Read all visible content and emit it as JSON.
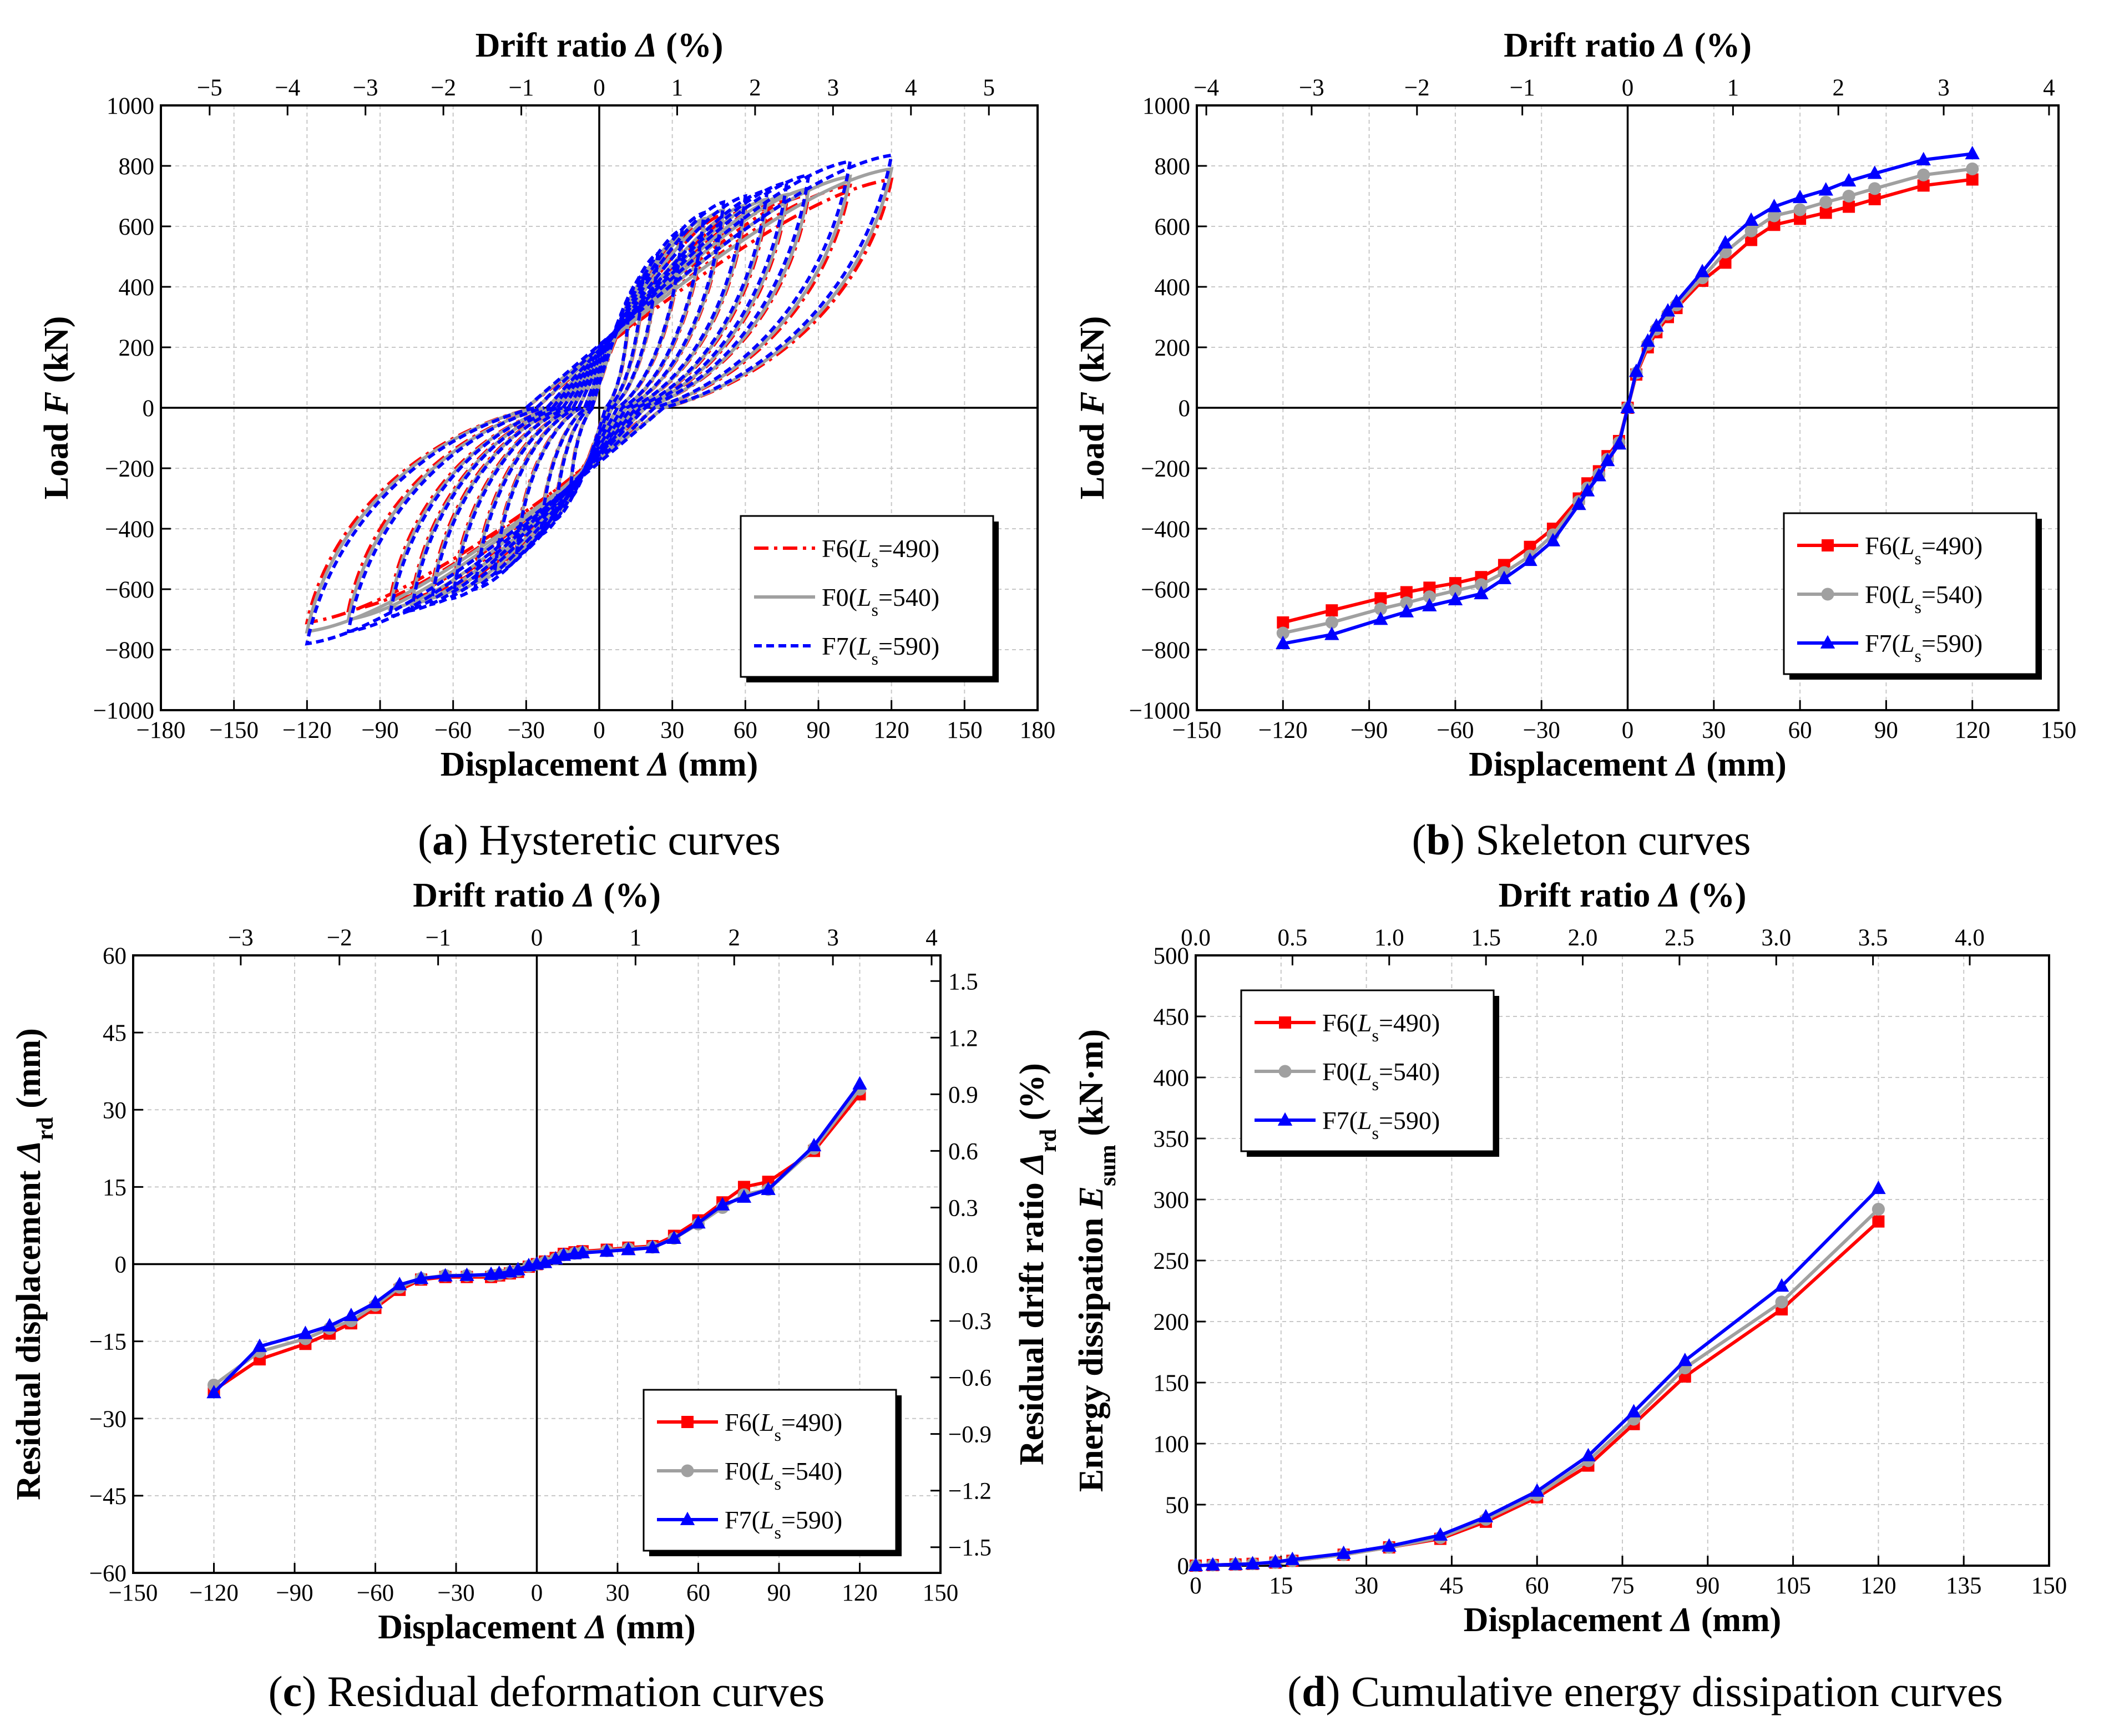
{
  "figure": {
    "captions": [
      {
        "letter": "a",
        "text": " Hysteretic curves"
      },
      {
        "letter": "b",
        "text": " Skeleton curves"
      },
      {
        "letter": "c",
        "text": " Residual deformation curves"
      },
      {
        "letter": "d",
        "text": " Cumulative energy dissipation curves"
      }
    ]
  },
  "legend": {
    "series": [
      {
        "name": "F6",
        "ls": "490",
        "color": "#ff0000",
        "marker": "square"
      },
      {
        "name": "F0",
        "ls": "540",
        "color": "#a0a0a0",
        "marker": "circle"
      },
      {
        "name": "F7",
        "ls": "590",
        "color": "#0000ff",
        "marker": "triangle"
      }
    ],
    "ls_symbol": "L",
    "ls_sub": "s"
  },
  "chart_data": [
    {
      "id": "a",
      "type": "line",
      "title": "Hysteretic curves",
      "xlabel": "Displacement Δ (mm)",
      "ylabel": "Load F (kN)",
      "top_xlabel": "Drift ratio Δ (%)",
      "xlim": [
        -180,
        180
      ],
      "ylim": [
        -1000,
        1000
      ],
      "xticks": [
        -180,
        -150,
        -120,
        -90,
        -60,
        -30,
        0,
        30,
        60,
        90,
        120,
        150,
        180
      ],
      "yticks": [
        -1000,
        -800,
        -600,
        -400,
        -200,
        0,
        200,
        400,
        600,
        800,
        1000
      ],
      "top_xlim": [
        -5.625,
        5.625
      ],
      "top_xticks": [
        -5,
        -4,
        -3,
        -2,
        -1,
        0,
        1,
        2,
        3,
        4,
        5
      ],
      "grid": true,
      "legend_position": "bottom-right",
      "series_style": [
        "dashdot",
        "solid",
        "dashed"
      ],
      "loops": [
        {
          "series": "F6",
          "amps": [
            12,
            18,
            24,
            34,
            43,
            51,
            60,
            69,
            77,
            86,
            103,
            120
          ],
          "peaks_pos": [
            300,
            410,
            480,
            560,
            610,
            640,
            655,
            670,
            685,
            705,
            735,
            755
          ],
          "peaks_neg": [
            -280,
            -350,
            -400,
            -460,
            -520,
            -560,
            -590,
            -610,
            -630,
            -640,
            -670,
            -710
          ]
        },
        {
          "series": "F0",
          "amps": [
            12,
            18,
            24,
            34,
            43,
            51,
            60,
            69,
            77,
            86,
            103,
            120
          ],
          "peaks_pos": [
            310,
            420,
            490,
            575,
            625,
            655,
            670,
            690,
            705,
            725,
            765,
            790
          ],
          "peaks_neg": [
            -290,
            -360,
            -410,
            -475,
            -535,
            -580,
            -610,
            -630,
            -650,
            -665,
            -700,
            -740
          ]
        },
        {
          "series": "F7",
          "amps": [
            12,
            18,
            24,
            34,
            43,
            51,
            60,
            69,
            77,
            86,
            103,
            120
          ],
          "peaks_pos": [
            320,
            440,
            510,
            590,
            645,
            680,
            700,
            720,
            745,
            770,
            815,
            835
          ],
          "peaks_neg": [
            -300,
            -370,
            -420,
            -490,
            -550,
            -600,
            -630,
            -650,
            -670,
            -690,
            -740,
            -780
          ]
        }
      ]
    },
    {
      "id": "b",
      "type": "line",
      "title": "Skeleton curves",
      "xlabel": "Displacement Δ (mm)",
      "ylabel": "Load F (kN)",
      "top_xlabel": "Drift ratio Δ (%)",
      "xlim": [
        -150,
        150
      ],
      "ylim": [
        -1000,
        1000
      ],
      "xticks": [
        -150,
        -120,
        -90,
        -60,
        -30,
        0,
        30,
        60,
        90,
        120,
        150
      ],
      "yticks": [
        -1000,
        -800,
        -600,
        -400,
        -200,
        0,
        200,
        400,
        600,
        800,
        1000
      ],
      "top_xlim": [
        -4.09,
        4.09
      ],
      "top_xticks": [
        -4,
        -3,
        -2,
        -1,
        0,
        1,
        2,
        3,
        4
      ],
      "grid": true,
      "legend_position": "bottom-right",
      "x": [
        -120,
        -103,
        -86,
        -77,
        -69,
        -60,
        -51,
        -43,
        -34,
        -26,
        -17,
        -14,
        -10,
        -7,
        -3,
        0,
        3,
        7,
        10,
        14,
        17,
        26,
        34,
        43,
        51,
        60,
        69,
        77,
        86,
        103,
        120
      ],
      "series": [
        {
          "name": "F6",
          "values": [
            -710,
            -670,
            -630,
            -610,
            -595,
            -580,
            -560,
            -520,
            -460,
            -400,
            -300,
            -250,
            -210,
            -160,
            -110,
            0,
            110,
            200,
            250,
            300,
            330,
            420,
            480,
            555,
            605,
            625,
            645,
            665,
            690,
            735,
            755
          ]
        },
        {
          "name": "F0",
          "values": [
            -745,
            -710,
            -665,
            -645,
            -625,
            -605,
            -585,
            -545,
            -490,
            -420,
            -310,
            -265,
            -220,
            -170,
            -115,
            0,
            115,
            210,
            260,
            310,
            340,
            430,
            515,
            585,
            635,
            655,
            680,
            700,
            725,
            770,
            790
          ]
        },
        {
          "name": "F7",
          "values": [
            -780,
            -750,
            -700,
            -675,
            -655,
            -635,
            -615,
            -565,
            -505,
            -440,
            -320,
            -275,
            -225,
            -175,
            -120,
            0,
            120,
            220,
            270,
            320,
            350,
            450,
            545,
            620,
            665,
            695,
            720,
            750,
            775,
            820,
            840
          ]
        }
      ]
    },
    {
      "id": "c",
      "type": "line",
      "title": "Residual deformation curves",
      "xlabel": "Displacement Δ (mm)",
      "ylabel": "Residual displacement Δrd (mm)",
      "ylabel_right": "Residual drift ratio Δrd (%)",
      "top_xlabel": "Drift ratio Δ (%)",
      "xlim": [
        -150,
        150
      ],
      "ylim": [
        -60,
        60
      ],
      "xticks": [
        -150,
        -120,
        -90,
        -60,
        -30,
        0,
        30,
        60,
        90,
        120,
        150
      ],
      "yticks": [
        -60,
        -45,
        -30,
        -15,
        0,
        15,
        30,
        45,
        60
      ],
      "top_xlim": [
        -4.09,
        4.09
      ],
      "top_xticks": [
        -3,
        -2,
        -1,
        0,
        1,
        2,
        3,
        4
      ],
      "right_ylim": [
        -1.636,
        1.636
      ],
      "right_yticks": [
        "-1.5",
        "-1.2",
        "-0.9",
        "-0.6",
        "-0.3",
        "0.0",
        "0.3",
        "0.6",
        "0.9",
        "1.2",
        "1.5"
      ],
      "grid": true,
      "legend_position": "bottom-right",
      "x": [
        -120,
        -103,
        -86,
        -77,
        -69,
        -60,
        -51,
        -43,
        -34,
        -26,
        -17,
        -14,
        -10,
        -7,
        -3,
        0,
        3,
        7,
        10,
        14,
        17,
        26,
        34,
        43,
        51,
        60,
        69,
        77,
        86,
        103,
        120
      ],
      "series": [
        {
          "name": "F6",
          "values": [
            -24.5,
            -18.5,
            -15.5,
            -13.5,
            -11.5,
            -8.5,
            -5,
            -3,
            -2.5,
            -2.5,
            -2.5,
            -2.2,
            -1.8,
            -1.5,
            -0.5,
            0,
            0.5,
            1.2,
            2,
            2.3,
            2.5,
            2.8,
            3.2,
            3.5,
            5.5,
            8.5,
            12,
            15,
            16,
            22,
            33
          ]
        },
        {
          "name": "F0",
          "values": [
            -23.5,
            -17,
            -14.5,
            -12.5,
            -11,
            -8,
            -4.5,
            -2.8,
            -2.2,
            -2.2,
            -2.2,
            -2,
            -1.6,
            -1.3,
            -0.4,
            0,
            0.4,
            1,
            1.8,
            2.1,
            2.3,
            2.6,
            3,
            3.3,
            5,
            7.8,
            11,
            13.5,
            14.5,
            22.5,
            34
          ]
        },
        {
          "name": "F7",
          "values": [
            -25,
            -16,
            -13.5,
            -12,
            -10,
            -7.5,
            -4,
            -2.8,
            -2.3,
            -2.2,
            -2,
            -1.8,
            -1.5,
            -1.1,
            -0.3,
            0,
            0.3,
            1,
            1.7,
            2,
            2.2,
            2.5,
            2.8,
            3.2,
            5,
            8,
            11.5,
            13,
            14.5,
            23,
            35
          ]
        }
      ]
    },
    {
      "id": "d",
      "type": "line",
      "title": "Cumulative energy dissipation curves",
      "xlabel": "Displacement Δ (mm)",
      "ylabel": "Energy dissipation Esum (kN·m)",
      "top_xlabel": "Drift ratio Δ (%)",
      "xlim": [
        0,
        150
      ],
      "ylim": [
        0,
        500
      ],
      "xticks": [
        0,
        15,
        30,
        45,
        60,
        75,
        90,
        105,
        120,
        135,
        150
      ],
      "yticks": [
        0,
        50,
        100,
        150,
        200,
        250,
        300,
        350,
        400,
        450,
        500
      ],
      "top_xlim": [
        0,
        4.41
      ],
      "top_xticks": [
        "0.0",
        "0.5",
        "1.0",
        "1.5",
        "2.0",
        "2.5",
        "3.0",
        "3.5",
        "4.0"
      ],
      "grid": true,
      "legend_position": "top-left",
      "x": [
        0,
        3,
        7,
        10,
        14,
        17,
        26,
        34,
        43,
        51,
        60,
        69,
        77,
        86,
        103,
        120
      ],
      "series": [
        {
          "name": "F6",
          "values": [
            0,
            0.5,
            1,
            1.5,
            2.5,
            4,
            9,
            15,
            22,
            36,
            56,
            82,
            116,
            155,
            210,
            282
          ]
        },
        {
          "name": "F0",
          "values": [
            0,
            0.5,
            1,
            1.5,
            2.5,
            4,
            9,
            15,
            23,
            38,
            58,
            86,
            120,
            162,
            216,
            292
          ]
        },
        {
          "name": "F7",
          "values": [
            0,
            0.5,
            1,
            1.5,
            3,
            5,
            10,
            16,
            25,
            40,
            61,
            90,
            126,
            168,
            229,
            309
          ]
        }
      ]
    }
  ]
}
